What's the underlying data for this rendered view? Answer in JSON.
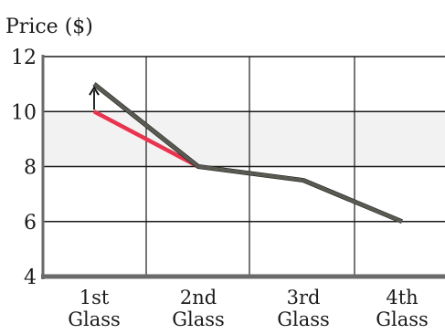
{
  "chart_data": {
    "type": "line",
    "title": "",
    "ylabel": "Price ($)",
    "xlabel": "",
    "categories": [
      [
        "1st",
        "Glass"
      ],
      [
        "2nd",
        "Glass"
      ],
      [
        "3rd",
        "Glass"
      ],
      [
        "4th",
        "Glass"
      ]
    ],
    "ylim": [
      4,
      12
    ],
    "yticks": [
      4,
      6,
      8,
      10,
      12
    ],
    "grid": true,
    "series": [
      {
        "color": "#e8344e",
        "values": [
          10,
          8,
          null,
          null
        ]
      },
      {
        "color": "#111111",
        "values": [
          11,
          8,
          7.5,
          6
        ]
      },
      {
        "color": "#5a5a52",
        "values": [
          11,
          8,
          7.5,
          6
        ]
      }
    ],
    "annotations": [
      {
        "type": "arrow",
        "from": 10,
        "to": 11,
        "x": 0
      }
    ],
    "colors": {
      "grid": "#1a1a1a",
      "axis": "#6a6a6a",
      "band": "#f2f2f2"
    }
  }
}
